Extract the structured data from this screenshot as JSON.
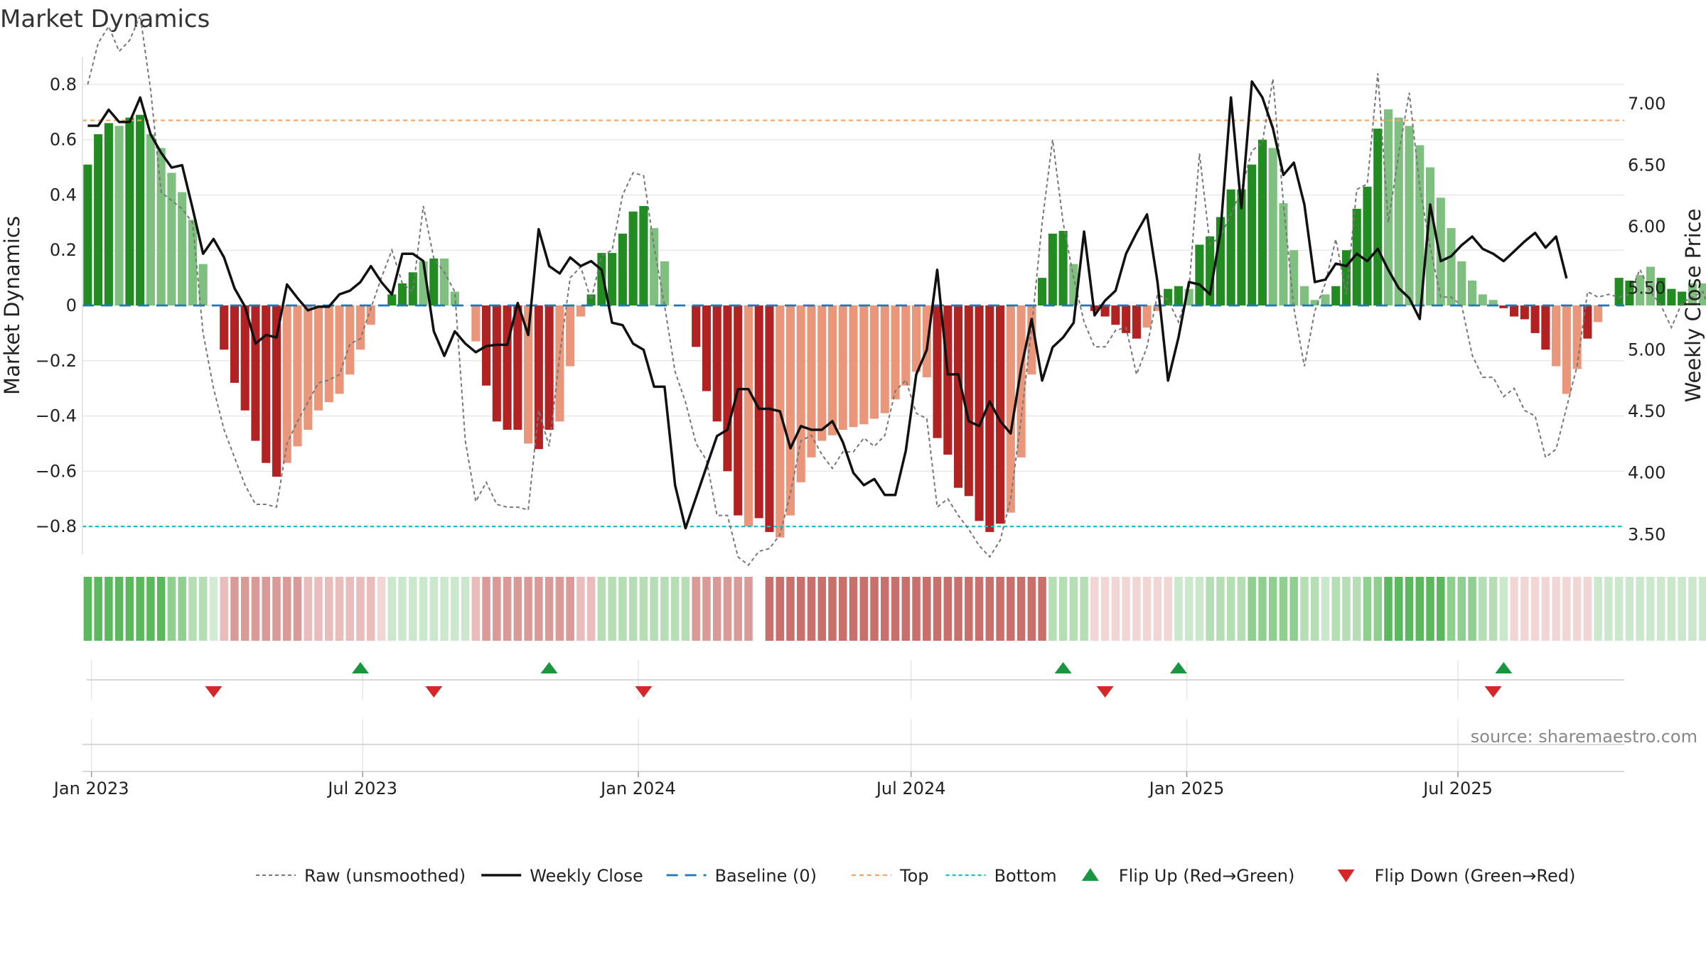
{
  "title": "Market Dynamics",
  "source": "source: sharemaestro.com",
  "colors": {
    "strong_green": "#228b22",
    "light_green": "#7fbf7f",
    "strong_red": "#b22222",
    "light_red": "#e9967a",
    "price_line": "#111111",
    "raw_line": "#777777",
    "baseline": "#1f77b4",
    "top": "#f4a460",
    "bottom": "#17becf",
    "flip_up": "#1a9641",
    "flip_down": "#d62728"
  },
  "chart_data": {
    "type": "bar",
    "title": "Market Dynamics",
    "ylabel": "Market Dynamics",
    "y2label": "Weekly Close Price",
    "ylim": [
      -0.9,
      0.9
    ],
    "y2lim": [
      3.34,
      7.38
    ],
    "yticks": [
      0.8,
      0.6,
      0.4,
      0.2,
      0,
      -0.2,
      -0.4,
      -0.6,
      -0.8
    ],
    "ytick_labels": [
      "0.8",
      "0.6",
      "0.4",
      "0.2",
      "0",
      "−0.2",
      "−0.4",
      "−0.6",
      "−0.8"
    ],
    "y2ticks": [
      7.0,
      6.5,
      6.0,
      5.5,
      5.0,
      4.5,
      4.0,
      3.5
    ],
    "y2tick_labels": [
      "7.00",
      "6.50",
      "6.00",
      "5.50",
      "5.00",
      "4.50",
      "4.00",
      "3.50"
    ],
    "xlim": [
      "2022-12-26",
      "2025-10-20"
    ],
    "xticks": [
      "2023-01-01",
      "2023-07-01",
      "2024-01-01",
      "2024-07-01",
      "2025-01-01",
      "2025-07-01"
    ],
    "xtick_labels": [
      "Jan 2023",
      "Jul 2023",
      "Jan 2024",
      "Jul 2024",
      "Jan 2025",
      "Jul 2025"
    ],
    "start_week": "2022-12-26",
    "top_level": 0.67,
    "bottom_level": -0.8,
    "baseline_level": 0,
    "grid": true,
    "legend_position": "bottom",
    "dynamics": [
      0.51,
      0.62,
      0.66,
      0.65,
      0.68,
      0.69,
      0.62,
      0.57,
      0.48,
      0.41,
      0.31,
      0.15,
      0,
      -0.16,
      -0.28,
      -0.38,
      -0.49,
      -0.57,
      -0.62,
      -0.57,
      -0.51,
      -0.45,
      -0.38,
      -0.35,
      -0.32,
      -0.25,
      -0.16,
      -0.07,
      0,
      0.04,
      0.08,
      0.12,
      0.16,
      0.17,
      0.17,
      0.05,
      0,
      -0.13,
      -0.29,
      -0.42,
      -0.45,
      -0.45,
      -0.5,
      -0.52,
      -0.45,
      -0.42,
      -0.22,
      -0.04,
      0.04,
      0.19,
      0.19,
      0.26,
      0.34,
      0.36,
      0.28,
      0.16,
      0,
      0,
      -0.15,
      -0.31,
      -0.42,
      -0.6,
      -0.76,
      -0.8,
      -0.77,
      -0.82,
      -0.84,
      -0.76,
      -0.64,
      -0.55,
      -0.49,
      -0.47,
      -0.45,
      -0.44,
      -0.43,
      -0.41,
      -0.39,
      -0.34,
      -0.29,
      -0.24,
      -0.26,
      -0.48,
      -0.54,
      -0.66,
      -0.69,
      -0.78,
      -0.82,
      -0.79,
      -0.75,
      -0.55,
      -0.25,
      0.1,
      0.26,
      0.27,
      0.15,
      0,
      -0.02,
      -0.04,
      -0.07,
      -0.1,
      -0.12,
      -0.08,
      -0.02,
      0.06,
      0.07,
      0.06,
      0.22,
      0.25,
      0.32,
      0.42,
      0.42,
      0.51,
      0.6,
      0.57,
      0.37,
      0.2,
      0.07,
      0.02,
      0.04,
      0.07,
      0.2,
      0.35,
      0.43,
      0.64,
      0.71,
      0.68,
      0.65,
      0.58,
      0.5,
      0.39,
      0.28,
      0.16,
      0.09,
      0.04,
      0.02,
      -0.01,
      -0.04,
      -0.05,
      -0.1,
      -0.16,
      -0.22,
      -0.32,
      -0.23,
      -0.12,
      -0.06,
      0,
      0.1,
      0.09,
      0.11,
      0.14,
      0.1,
      0.06,
      0.05,
      0.08,
      0.08,
      0.09,
      0.1,
      0.01
    ],
    "bar_intensity": [
      "strong",
      "strong",
      "strong",
      "light",
      "strong",
      "strong",
      "light",
      "light",
      "light",
      "light",
      "light",
      "light",
      "light",
      "strong",
      "strong",
      "strong",
      "strong",
      "strong",
      "strong",
      "light",
      "light",
      "light",
      "light",
      "light",
      "light",
      "light",
      "light",
      "light",
      "light",
      "strong",
      "strong",
      "strong",
      "light",
      "strong",
      "light",
      "light",
      "light",
      "light",
      "strong",
      "strong",
      "strong",
      "strong",
      "light",
      "strong",
      "strong",
      "light",
      "light",
      "light",
      "strong",
      "strong",
      "strong",
      "strong",
      "strong",
      "strong",
      "light",
      "light",
      "light",
      "light",
      "strong",
      "strong",
      "strong",
      "strong",
      "strong",
      "light",
      "strong",
      "strong",
      "light",
      "light",
      "light",
      "light",
      "light",
      "light",
      "light",
      "light",
      "light",
      "light",
      "light",
      "light",
      "light",
      "light",
      "light",
      "strong",
      "strong",
      "strong",
      "strong",
      "strong",
      "strong",
      "strong",
      "light",
      "light",
      "light",
      "strong",
      "strong",
      "strong",
      "light",
      "light",
      "strong",
      "strong",
      "strong",
      "strong",
      "strong",
      "light",
      "light",
      "strong",
      "strong",
      "light",
      "strong",
      "strong",
      "strong",
      "strong",
      "strong",
      "strong",
      "strong",
      "light",
      "light",
      "light",
      "light",
      "light",
      "light",
      "strong",
      "strong",
      "strong",
      "strong",
      "strong",
      "light",
      "light",
      "light",
      "light",
      "light",
      "light",
      "light",
      "light",
      "light",
      "light",
      "light",
      "strong",
      "strong",
      "strong",
      "strong",
      "strong",
      "light",
      "light",
      "light",
      "strong",
      "light",
      "light",
      "strong",
      "strong",
      "light",
      "light",
      "strong",
      "strong",
      "strong",
      "light",
      "light"
    ],
    "raw": [
      0.8,
      0.95,
      1.01,
      0.92,
      0.96,
      1.05,
      0.78,
      0.41,
      0.38,
      0.35,
      0.3,
      -0.1,
      -0.3,
      -0.45,
      -0.55,
      -0.65,
      -0.72,
      -0.72,
      -0.73,
      -0.5,
      -0.42,
      -0.35,
      -0.28,
      -0.27,
      -0.25,
      -0.14,
      -0.12,
      -0.01,
      0.1,
      0.2,
      0.08,
      0.05,
      0.36,
      0.17,
      0.12,
      0.05,
      -0.49,
      -0.71,
      -0.64,
      -0.72,
      -0.73,
      -0.73,
      -0.74,
      -0.38,
      -0.51,
      -0.18,
      0.1,
      0.14,
      0.02,
      0.18,
      0.2,
      0.4,
      0.48,
      0.47,
      0.21,
      0.0,
      -0.24,
      -0.35,
      -0.5,
      -0.56,
      -0.76,
      -0.76,
      -0.91,
      -0.94,
      -0.89,
      -0.88,
      -0.83,
      -0.68,
      -0.49,
      -0.47,
      -0.54,
      -0.59,
      -0.53,
      -0.53,
      -0.48,
      -0.51,
      -0.47,
      -0.31,
      -0.27,
      -0.39,
      -0.41,
      -0.73,
      -0.7,
      -0.76,
      -0.81,
      -0.87,
      -0.91,
      -0.85,
      -0.7,
      -0.41,
      -0.08,
      0.3,
      0.6,
      0.3,
      0.1,
      -0.06,
      -0.15,
      -0.15,
      -0.09,
      -0.08,
      -0.25,
      -0.15,
      0.04,
      0.02,
      -0.06,
      0.06,
      0.55,
      0.22,
      0.25,
      0.33,
      0.42,
      0.56,
      0.59,
      0.82,
      0.37,
      -0.01,
      -0.22,
      -0.02,
      0.08,
      0.24,
      0.04,
      0.42,
      0.44,
      0.84,
      0.3,
      0.55,
      0.77,
      0.43,
      0.21,
      0.03,
      0.03,
      0.0,
      -0.18,
      -0.26,
      -0.26,
      -0.33,
      -0.3,
      -0.38,
      -0.4,
      -0.55,
      -0.52,
      -0.37,
      -0.22,
      0.05,
      0.03,
      0.04,
      0.03,
      0.04,
      0.13,
      0.05,
      0.0,
      -0.08,
      0.01,
      0.03,
      0.05,
      -0.06,
      -0.15
    ],
    "close": [
      6.82,
      6.82,
      6.95,
      6.85,
      6.85,
      7.05,
      6.75,
      6.6,
      6.48,
      6.5,
      6.15,
      5.78,
      5.9,
      5.75,
      5.5,
      5.35,
      5.05,
      5.12,
      5.1,
      5.53,
      5.42,
      5.32,
      5.35,
      5.35,
      5.45,
      5.48,
      5.55,
      5.68,
      5.55,
      5.45,
      5.78,
      5.78,
      5.72,
      5.15,
      4.95,
      5.15,
      5.05,
      4.98,
      5.03,
      5.04,
      5.04,
      5.38,
      5.12,
      5.98,
      5.68,
      5.62,
      5.75,
      5.68,
      5.72,
      5.65,
      5.22,
      5.2,
      5.05,
      5.0,
      4.7,
      4.7,
      3.9,
      3.55,
      3.8,
      4.05,
      4.3,
      4.35,
      4.68,
      4.68,
      4.52,
      4.52,
      4.5,
      4.2,
      4.38,
      4.35,
      4.35,
      4.42,
      4.25,
      4.0,
      3.9,
      3.95,
      3.82,
      3.82,
      4.18,
      4.8,
      5.0,
      5.65,
      4.8,
      4.8,
      4.42,
      4.38,
      4.58,
      4.42,
      4.32,
      4.85,
      5.25,
      4.75,
      5.02,
      5.1,
      5.22,
      5.96,
      5.28,
      5.4,
      5.48,
      5.78,
      5.95,
      6.1,
      5.55,
      4.75,
      5.1,
      5.55,
      5.53,
      5.45,
      5.95,
      7.05,
      6.15,
      7.18,
      7.05,
      6.8,
      6.42,
      6.52,
      6.18,
      5.55,
      5.57,
      5.7,
      5.68,
      5.78,
      5.72,
      5.82,
      5.65,
      5.5,
      5.42,
      5.25,
      6.18,
      5.72,
      5.76,
      5.85,
      5.92,
      5.82,
      5.78,
      5.72,
      5.8,
      5.88,
      5.95,
      5.83,
      5.92,
      5.58
    ],
    "heat_band": [
      "s",
      "s",
      "s",
      "s",
      "s",
      "s",
      "s",
      "s",
      "m",
      "m",
      "l",
      "l",
      "x",
      "lr",
      "mr",
      "mr",
      "mr",
      "mr",
      "mr",
      "mr",
      "mr",
      "lr",
      "lr",
      "lr",
      "lr",
      "lr",
      "lr",
      "lr",
      "xr",
      "xl",
      "xl",
      "xl",
      "xl",
      "xl",
      "xl",
      "xl",
      "xl",
      "lr",
      "mr",
      "mr",
      "mr",
      "mr",
      "mr",
      "mr",
      "mr",
      "mr",
      "mr",
      "lr",
      "lr",
      "l",
      "l",
      "l",
      "l",
      "l",
      "l",
      "l",
      "l",
      "l",
      "mr",
      "mr",
      "mr",
      "mr",
      "mr",
      "mr",
      "_",
      "sr",
      "sr",
      "sr",
      "sr",
      "sr",
      "sr",
      "sr",
      "sr",
      "sr",
      "sr",
      "sr",
      "sr",
      "sr",
      "sr",
      "sr",
      "sr",
      "sr",
      "sr",
      "sr",
      "sr",
      "sr",
      "sr",
      "sr",
      "sr",
      "sr",
      "sr",
      "sr",
      "l",
      "l",
      "l",
      "l",
      "xr",
      "xr",
      "xr",
      "xr",
      "xr",
      "xr",
      "xr",
      "xr",
      "xl",
      "xl",
      "xl",
      "l",
      "l",
      "l",
      "l",
      "m",
      "m",
      "m",
      "m",
      "m",
      "l",
      "l",
      "xl",
      "l",
      "l",
      "l",
      "m",
      "m",
      "s",
      "s",
      "s",
      "s",
      "s",
      "s",
      "m",
      "m",
      "m",
      "l",
      "l",
      "xl",
      "xr",
      "xr",
      "xr",
      "xr",
      "xr",
      "xr",
      "xr",
      "xr",
      "xl",
      "xl",
      "xl",
      "xl",
      "xl",
      "xl",
      "xl",
      "xl",
      "xl",
      "xl",
      "xl",
      "xl",
      "xl"
    ],
    "flip_up_weeks": [
      26,
      44,
      93,
      104,
      135
    ],
    "flip_down_weeks": [
      12,
      33,
      53,
      97,
      134
    ]
  },
  "legend": [
    {
      "key": "raw",
      "label": "Raw (unsmoothed)"
    },
    {
      "key": "close",
      "label": "Weekly Close"
    },
    {
      "key": "baseline",
      "label": "Baseline (0)"
    },
    {
      "key": "top",
      "label": "Top"
    },
    {
      "key": "bottom",
      "label": "Bottom"
    },
    {
      "key": "flip_up",
      "label": "Flip Up (Red→Green)"
    },
    {
      "key": "flip_down",
      "label": "Flip Down (Green→Red)"
    }
  ]
}
